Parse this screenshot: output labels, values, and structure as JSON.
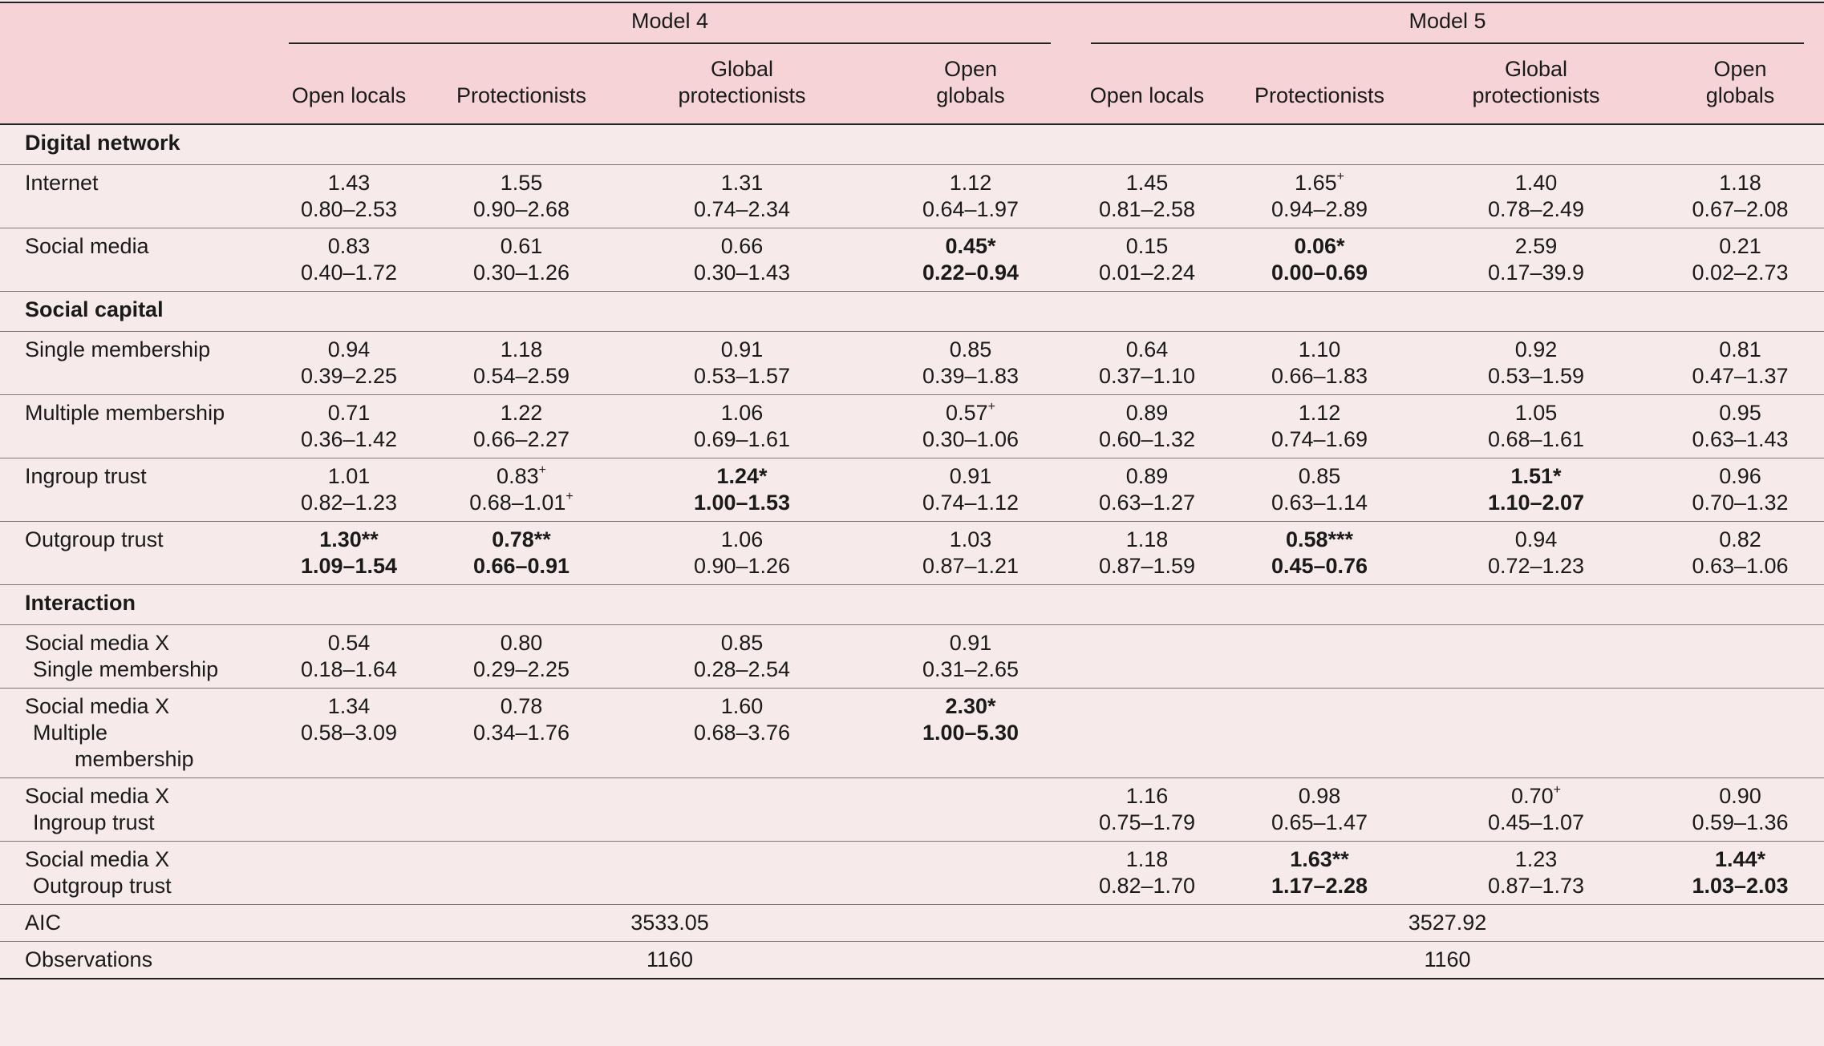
{
  "groups": {
    "model4": "Model 4",
    "model5": "Model 5"
  },
  "columns": [
    "Open locals",
    "Protectionists",
    "Global protectionists",
    "Open globals"
  ],
  "column_lines": [
    [
      "Open locals"
    ],
    [
      "Protectionists"
    ],
    [
      "Global",
      "protectionists"
    ],
    [
      "Open",
      "globals"
    ]
  ],
  "rows": [
    {
      "type": "section",
      "label": "Digital network"
    },
    {
      "type": "data",
      "label": [
        "Internet"
      ],
      "cells": [
        {
          "v": "1.43",
          "ci": "0.80–2.53"
        },
        {
          "v": "1.55",
          "ci": "0.90–2.68"
        },
        {
          "v": "1.31",
          "ci": "0.74–2.34"
        },
        {
          "v": "1.12",
          "ci": "0.64–1.97"
        },
        {
          "v": "1.45",
          "ci": "0.81–2.58"
        },
        {
          "v": "1.65",
          "sup": "+",
          "ci": "0.94–2.89"
        },
        {
          "v": "1.40",
          "ci": "0.78–2.49"
        },
        {
          "v": "1.18",
          "ci": "0.67–2.08"
        }
      ]
    },
    {
      "type": "data",
      "label": [
        "Social media"
      ],
      "cells": [
        {
          "v": "0.83",
          "ci": "0.40–1.72"
        },
        {
          "v": "0.61",
          "ci": "0.30–1.26"
        },
        {
          "v": "0.66",
          "ci": "0.30–1.43"
        },
        {
          "v": "0.45*",
          "ci": "0.22–0.94",
          "bold": true
        },
        {
          "v": "0.15",
          "ci": "0.01–2.24"
        },
        {
          "v": "0.06*",
          "ci": "0.00–0.69",
          "bold": true
        },
        {
          "v": "2.59",
          "ci": "0.17–39.9"
        },
        {
          "v": "0.21",
          "ci": "0.02–2.73"
        }
      ]
    },
    {
      "type": "section",
      "label": "Social capital"
    },
    {
      "type": "data",
      "label": [
        "Single membership"
      ],
      "cells": [
        {
          "v": "0.94",
          "ci": "0.39–2.25"
        },
        {
          "v": "1.18",
          "ci": "0.54–2.59"
        },
        {
          "v": "0.91",
          "ci": "0.53–1.57"
        },
        {
          "v": "0.85",
          "ci": "0.39–1.83"
        },
        {
          "v": "0.64",
          "ci": "0.37–1.10"
        },
        {
          "v": "1.10",
          "ci": "0.66–1.83"
        },
        {
          "v": "0.92",
          "ci": "0.53–1.59"
        },
        {
          "v": "0.81",
          "ci": "0.47–1.37"
        }
      ]
    },
    {
      "type": "data",
      "label": [
        "Multiple membership"
      ],
      "cells": [
        {
          "v": "0.71",
          "ci": "0.36–1.42"
        },
        {
          "v": "1.22",
          "ci": "0.66–2.27"
        },
        {
          "v": "1.06",
          "ci": "0.69–1.61"
        },
        {
          "v": "0.57",
          "sup": "+",
          "ci": "0.30–1.06"
        },
        {
          "v": "0.89",
          "ci": "0.60–1.32"
        },
        {
          "v": "1.12",
          "ci": "0.74–1.69"
        },
        {
          "v": "1.05",
          "ci": "0.68–1.61"
        },
        {
          "v": "0.95",
          "ci": "0.63–1.43"
        }
      ]
    },
    {
      "type": "data",
      "label": [
        "Ingroup trust"
      ],
      "cells": [
        {
          "v": "1.01",
          "ci": "0.82–1.23"
        },
        {
          "v": "0.83",
          "sup": "+",
          "ci": "0.68–1.01",
          "cisup": "+"
        },
        {
          "v": "1.24*",
          "ci": "1.00–1.53",
          "bold": true
        },
        {
          "v": "0.91",
          "ci": "0.74–1.12"
        },
        {
          "v": "0.89",
          "ci": "0.63–1.27"
        },
        {
          "v": "0.85",
          "ci": "0.63–1.14"
        },
        {
          "v": "1.51*",
          "ci": "1.10–2.07",
          "bold": true
        },
        {
          "v": "0.96",
          "ci": "0.70–1.32"
        }
      ]
    },
    {
      "type": "data",
      "label": [
        "Outgroup trust"
      ],
      "cells": [
        {
          "v": "1.30**",
          "ci": "1.09–1.54",
          "bold": true
        },
        {
          "v": "0.78**",
          "ci": "0.66–0.91",
          "bold": true
        },
        {
          "v": "1.06",
          "ci": "0.90–1.26"
        },
        {
          "v": "1.03",
          "ci": "0.87–1.21"
        },
        {
          "v": "1.18",
          "ci": "0.87–1.59"
        },
        {
          "v": "0.58***",
          "ci": "0.45–0.76",
          "bold": true
        },
        {
          "v": "0.94",
          "ci": "0.72–1.23"
        },
        {
          "v": "0.82",
          "ci": "0.63–1.06"
        }
      ]
    },
    {
      "type": "section",
      "label": "Interaction"
    },
    {
      "type": "data",
      "label": [
        "Social media X",
        "Single membership"
      ],
      "cells": [
        {
          "v": "0.54",
          "ci": "0.18–1.64"
        },
        {
          "v": "0.80",
          "ci": "0.29–2.25"
        },
        {
          "v": "0.85",
          "ci": "0.28–2.54"
        },
        {
          "v": "0.91",
          "ci": "0.31–2.65"
        },
        null,
        null,
        null,
        null
      ]
    },
    {
      "type": "data",
      "label": [
        "Social media X",
        "Multiple",
        "membership"
      ],
      "cells": [
        {
          "v": "1.34",
          "ci": "0.58–3.09"
        },
        {
          "v": "0.78",
          "ci": "0.34–1.76"
        },
        {
          "v": "1.60",
          "ci": "0.68–3.76"
        },
        {
          "v": "2.30*",
          "ci": "1.00–5.30",
          "bold": true
        },
        null,
        null,
        null,
        null
      ]
    },
    {
      "type": "data",
      "label": [
        "Social media X",
        "Ingroup trust"
      ],
      "cells": [
        null,
        null,
        null,
        null,
        {
          "v": "1.16",
          "ci": "0.75–1.79"
        },
        {
          "v": "0.98",
          "ci": "0.65–1.47"
        },
        {
          "v": "0.70",
          "sup": "+",
          "ci": "0.45–1.07"
        },
        {
          "v": "0.90",
          "ci": "0.59–1.36"
        }
      ]
    },
    {
      "type": "data",
      "label": [
        "Social media X",
        "Outgroup trust"
      ],
      "cells": [
        null,
        null,
        null,
        null,
        {
          "v": "1.18",
          "ci": "0.82–1.70"
        },
        {
          "v": "1.63**",
          "ci": "1.17–2.28",
          "bold": true
        },
        {
          "v": "1.23",
          "ci": "0.87–1.73"
        },
        {
          "v": "1.44*",
          "ci": "1.03–2.03",
          "bold": true
        }
      ]
    },
    {
      "type": "span",
      "label": "AIC",
      "m4": "3533.05",
      "m5": "3527.92"
    },
    {
      "type": "span",
      "label": "Observations",
      "m4": "1160",
      "m5": "1160"
    }
  ]
}
